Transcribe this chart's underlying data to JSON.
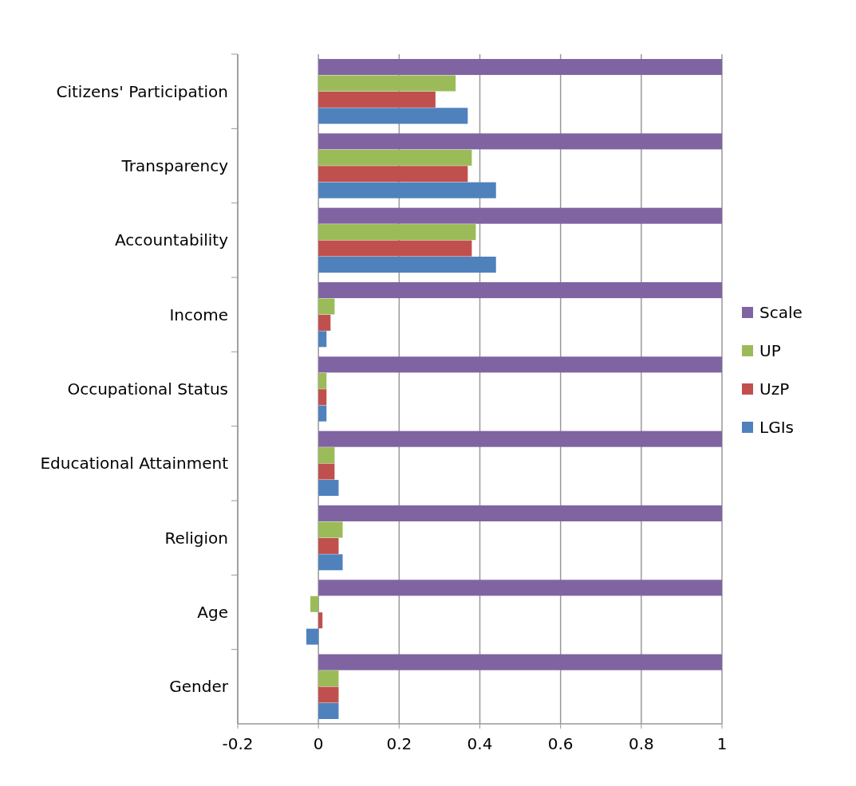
{
  "chart_data": {
    "type": "bar",
    "orientation": "horizontal",
    "categories": [
      "Citizens' Participation",
      "Transparency",
      "Accountability",
      "Income",
      "Occupational Status",
      "Educational Attainment",
      "Religion",
      "Age",
      "Gender"
    ],
    "series": [
      {
        "name": "Scale",
        "color": "#8064a2",
        "values": [
          1,
          1,
          1,
          1,
          1,
          1,
          1,
          1,
          1
        ]
      },
      {
        "name": "UP",
        "color": "#9bbb59",
        "values": [
          0.34,
          0.38,
          0.39,
          0.04,
          0.02,
          0.04,
          0.06,
          -0.02,
          0.05
        ]
      },
      {
        "name": "UzP",
        "color": "#c0504d",
        "values": [
          0.29,
          0.37,
          0.38,
          0.03,
          0.02,
          0.04,
          0.05,
          0.01,
          0.05
        ]
      },
      {
        "name": "LGIs",
        "color": "#4f81bd",
        "values": [
          0.37,
          0.44,
          0.44,
          0.02,
          0.02,
          0.05,
          0.06,
          -0.03,
          0.05
        ]
      }
    ],
    "xlim": [
      -0.2,
      1
    ],
    "xticks": [
      -0.2,
      0,
      0.2,
      0.4,
      0.6,
      0.8,
      1
    ],
    "grid": "x",
    "legend": "right"
  }
}
